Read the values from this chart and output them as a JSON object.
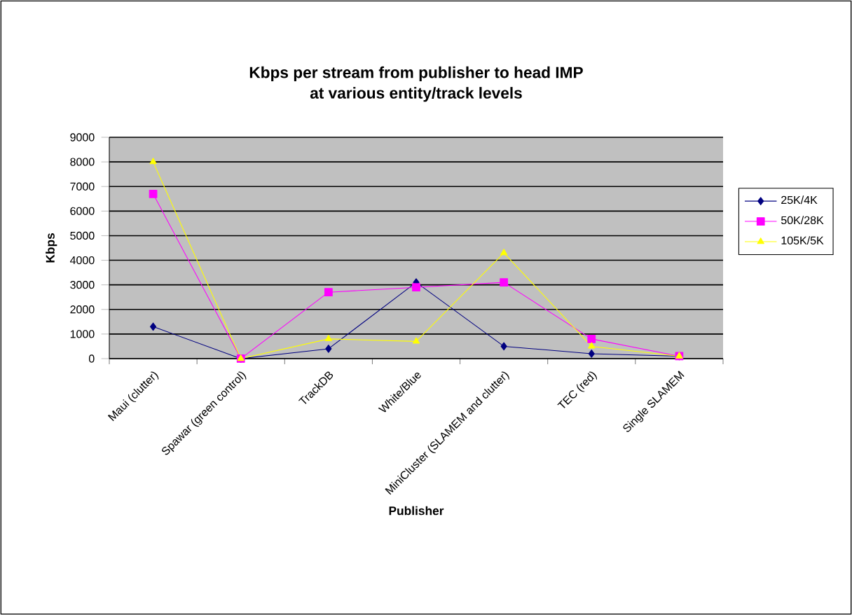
{
  "chart_data": {
    "type": "line",
    "title": "Kbps per stream from publisher to head IMP",
    "subtitle": "at various entity/track levels",
    "xlabel": "Publisher",
    "ylabel": "Kbps",
    "categories": [
      "Maui (clutter)",
      "Spawar (green control)",
      "TrackDB",
      "White/Blue",
      "MiniCluster (SLAMEM and clutter)",
      "TEC (red)",
      "Single SLAMEM"
    ],
    "series": [
      {
        "name": "25K/4K",
        "color": "#000080",
        "marker": "diamond",
        "values": [
          1300,
          0,
          400,
          3100,
          500,
          200,
          100
        ]
      },
      {
        "name": "50K/28K",
        "color": "#ff00ff",
        "marker": "square",
        "values": [
          6700,
          0,
          2700,
          2900,
          3100,
          800,
          100
        ]
      },
      {
        "name": "105K/5K",
        "color": "#ffff00",
        "marker": "triangle",
        "values": [
          8000,
          0,
          800,
          700,
          4300,
          500,
          100
        ]
      }
    ],
    "ylim": [
      0,
      9000
    ],
    "yticks": [
      0,
      1000,
      2000,
      3000,
      4000,
      5000,
      6000,
      7000,
      8000,
      9000
    ],
    "grid": "y",
    "legend": "right",
    "line_style": "solid"
  }
}
